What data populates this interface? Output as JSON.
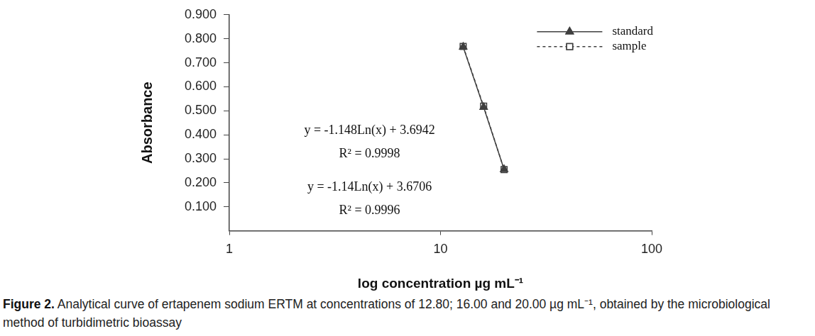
{
  "chart_data": {
    "type": "line",
    "x": [
      12.8,
      16,
      20
    ],
    "series": [
      {
        "name": "standard",
        "color": "#3f3f3f",
        "values": [
          0.766,
          0.515,
          0.256
        ],
        "marker": "triangle",
        "line_style": "solid"
      },
      {
        "name": "sample",
        "color": "#3f3f3f",
        "values": [
          0.768,
          0.519,
          0.255
        ],
        "marker": "square",
        "line_style": "dashed"
      }
    ],
    "xlabel": "log concentration µg mL⁻¹",
    "ylabel": "Absorbance",
    "xlim": [
      1,
      100
    ],
    "xticks": [
      1,
      10,
      100
    ],
    "ylim": [
      0,
      0.9
    ],
    "yticks": [
      {
        "value": 0.1,
        "label": "0.100"
      },
      {
        "value": 0.2,
        "label": "0.200"
      },
      {
        "value": 0.3,
        "label": "0.300"
      },
      {
        "value": 0.4,
        "label": "0.400"
      },
      {
        "value": 0.5,
        "label": "0.500"
      },
      {
        "value": 0.6,
        "label": "0.600"
      },
      {
        "value": 0.7,
        "label": "0.700"
      },
      {
        "value": 0.8,
        "label": "0.800"
      },
      {
        "value": 0.9,
        "label": "0.900"
      }
    ],
    "log": "x",
    "grid": false,
    "legend": "upper right",
    "annotations": [
      "y = -1.148Ln(x) + 3.6942",
      "R² = 0.9998",
      "y = -1.14Ln(x) + 3.6706",
      "R² = 0.9996"
    ]
  },
  "caption": {
    "label": "Figure 2.",
    "text": "Analytical curve of ertapenem sodium ERTM at concentrations of 12.80; 16.00 and 20.00 µg mL⁻¹, obtained by the microbiological method of turbidimetric bioassay"
  }
}
